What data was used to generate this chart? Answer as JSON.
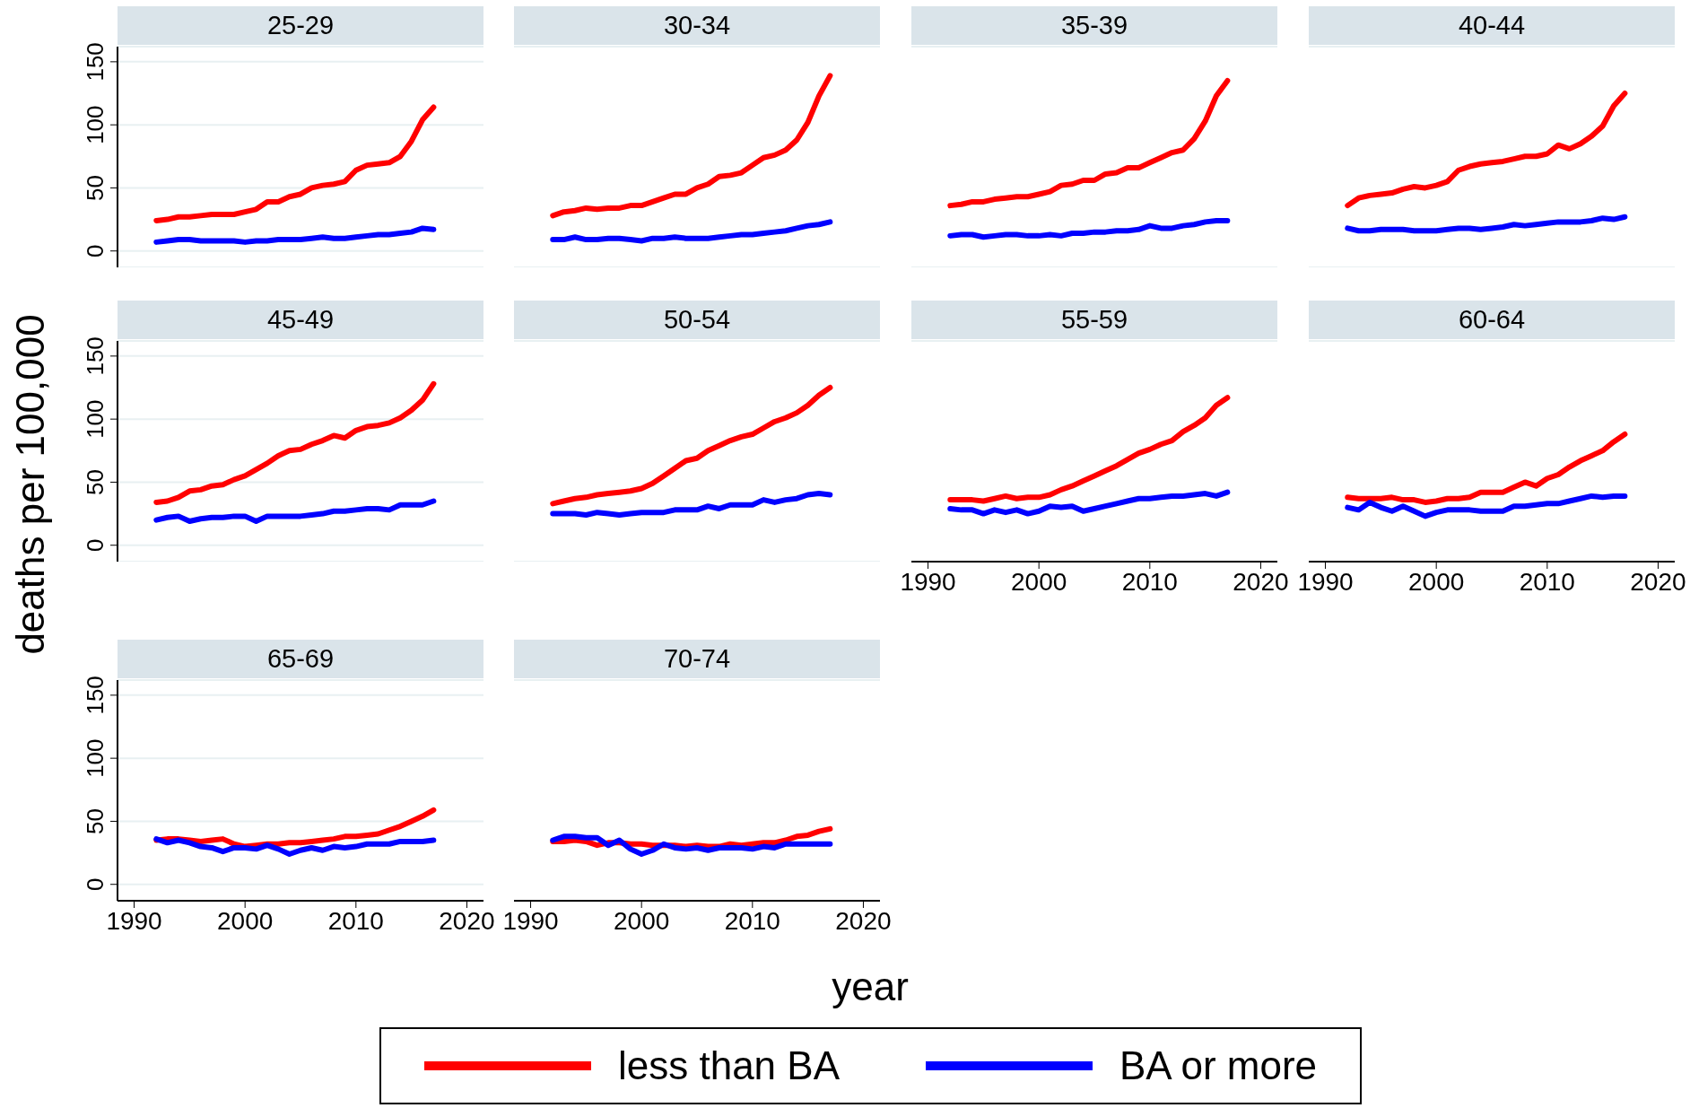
{
  "chart_data": [
    {
      "type": "line",
      "title": "25-29",
      "ylabel": "deaths per 100,000",
      "legend": "bottom",
      "grid": "y",
      "tick_labels": "y",
      "xlim": [
        1988.5,
        2021.5
      ],
      "ylim": [
        -13,
        162
      ],
      "xticks": [
        1990,
        2000,
        2010,
        2020
      ],
      "yticks": [
        0,
        50,
        100,
        150
      ],
      "x": [
        1992,
        1993,
        1994,
        1995,
        1996,
        1997,
        1998,
        1999,
        2000,
        2001,
        2002,
        2003,
        2004,
        2005,
        2006,
        2007,
        2008,
        2009,
        2010,
        2011,
        2012,
        2013,
        2014,
        2015,
        2016,
        2017
      ],
      "series": [
        {
          "name": "less than BA",
          "color": "#ff0000",
          "values": [
            24,
            25,
            27,
            27,
            28,
            29,
            29,
            29,
            31,
            33,
            39,
            39,
            43,
            45,
            50,
            52,
            53,
            55,
            64,
            68,
            69,
            70,
            75,
            87,
            104,
            114
          ]
        },
        {
          "name": "BA or more",
          "color": "#0000ff",
          "values": [
            7,
            8,
            9,
            9,
            8,
            8,
            8,
            8,
            7,
            8,
            8,
            9,
            9,
            9,
            10,
            11,
            10,
            10,
            11,
            12,
            13,
            13,
            14,
            15,
            18,
            17
          ]
        }
      ]
    },
    {
      "type": "line",
      "title": "30-34",
      "grid": "y",
      "tick_labels": false,
      "xlim": [
        1988.5,
        2021.5
      ],
      "ylim": [
        -13,
        162
      ],
      "xticks": [
        1990,
        2000,
        2010,
        2020
      ],
      "yticks": [
        0,
        50,
        100,
        150
      ],
      "x": [
        1992,
        1993,
        1994,
        1995,
        1996,
        1997,
        1998,
        1999,
        2000,
        2001,
        2002,
        2003,
        2004,
        2005,
        2006,
        2007,
        2008,
        2009,
        2010,
        2011,
        2012,
        2013,
        2014,
        2015,
        2016,
        2017
      ],
      "series": [
        {
          "color": "#ff0000",
          "values": [
            28,
            31,
            32,
            34,
            33,
            34,
            34,
            36,
            36,
            39,
            42,
            45,
            45,
            50,
            53,
            59,
            60,
            62,
            68,
            74,
            76,
            80,
            88,
            102,
            123,
            139
          ]
        },
        {
          "color": "#0000ff",
          "values": [
            9,
            9,
            11,
            9,
            9,
            10,
            10,
            9,
            8,
            10,
            10,
            11,
            10,
            10,
            10,
            11,
            12,
            13,
            13,
            14,
            15,
            16,
            18,
            20,
            21,
            23
          ]
        }
      ]
    },
    {
      "type": "line",
      "title": "35-39",
      "grid": "y",
      "tick_labels": false,
      "xlim": [
        1988.5,
        2021.5
      ],
      "ylim": [
        -13,
        162
      ],
      "xticks": [
        1990,
        2000,
        2010,
        2020
      ],
      "yticks": [
        0,
        50,
        100,
        150
      ],
      "x": [
        1992,
        1993,
        1994,
        1995,
        1996,
        1997,
        1998,
        1999,
        2000,
        2001,
        2002,
        2003,
        2004,
        2005,
        2006,
        2007,
        2008,
        2009,
        2010,
        2011,
        2012,
        2013,
        2014,
        2015,
        2016,
        2017
      ],
      "series": [
        {
          "color": "#ff0000",
          "values": [
            36,
            37,
            39,
            39,
            41,
            42,
            43,
            43,
            45,
            47,
            52,
            53,
            56,
            56,
            61,
            62,
            66,
            66,
            70,
            74,
            78,
            80,
            89,
            103,
            123,
            135
          ]
        },
        {
          "color": "#0000ff",
          "values": [
            12,
            13,
            13,
            11,
            12,
            13,
            13,
            12,
            12,
            13,
            12,
            14,
            14,
            15,
            15,
            16,
            16,
            17,
            20,
            18,
            18,
            20,
            21,
            23,
            24,
            24
          ]
        }
      ]
    },
    {
      "type": "line",
      "title": "40-44",
      "grid": "y",
      "tick_labels": false,
      "xlim": [
        1988.5,
        2021.5
      ],
      "ylim": [
        -13,
        162
      ],
      "xticks": [
        1990,
        2000,
        2010,
        2020
      ],
      "yticks": [
        0,
        50,
        100,
        150
      ],
      "x": [
        1992,
        1993,
        1994,
        1995,
        1996,
        1997,
        1998,
        1999,
        2000,
        2001,
        2002,
        2003,
        2004,
        2005,
        2006,
        2007,
        2008,
        2009,
        2010,
        2011,
        2012,
        2013,
        2014,
        2015,
        2016,
        2017
      ],
      "series": [
        {
          "color": "#ff0000",
          "values": [
            36,
            42,
            44,
            45,
            46,
            49,
            51,
            50,
            52,
            55,
            64,
            67,
            69,
            70,
            71,
            73,
            75,
            75,
            77,
            84,
            81,
            85,
            91,
            99,
            115,
            125
          ]
        },
        {
          "color": "#0000ff",
          "values": [
            18,
            16,
            16,
            17,
            17,
            17,
            16,
            16,
            16,
            17,
            18,
            18,
            17,
            18,
            19,
            21,
            20,
            21,
            22,
            23,
            23,
            23,
            24,
            26,
            25,
            27
          ]
        }
      ]
    },
    {
      "type": "line",
      "title": "45-49",
      "grid": "y",
      "tick_labels": "y",
      "xlim": [
        1988.5,
        2021.5
      ],
      "ylim": [
        -13,
        162
      ],
      "xticks": [
        1990,
        2000,
        2010,
        2020
      ],
      "yticks": [
        0,
        50,
        100,
        150
      ],
      "x": [
        1992,
        1993,
        1994,
        1995,
        1996,
        1997,
        1998,
        1999,
        2000,
        2001,
        2002,
        2003,
        2004,
        2005,
        2006,
        2007,
        2008,
        2009,
        2010,
        2011,
        2012,
        2013,
        2014,
        2015,
        2016,
        2017
      ],
      "series": [
        {
          "color": "#ff0000",
          "values": [
            34,
            35,
            38,
            43,
            44,
            47,
            48,
            52,
            55,
            60,
            65,
            71,
            75,
            76,
            80,
            83,
            87,
            85,
            91,
            94,
            95,
            97,
            101,
            107,
            115,
            128
          ]
        },
        {
          "color": "#0000ff",
          "values": [
            20,
            22,
            23,
            19,
            21,
            22,
            22,
            23,
            23,
            19,
            23,
            23,
            23,
            23,
            24,
            25,
            27,
            27,
            28,
            29,
            29,
            28,
            32,
            32,
            32,
            35
          ]
        }
      ]
    },
    {
      "type": "line",
      "title": "50-54",
      "grid": "y",
      "tick_labels": false,
      "xlim": [
        1988.5,
        2021.5
      ],
      "ylim": [
        -13,
        162
      ],
      "xticks": [
        1990,
        2000,
        2010,
        2020
      ],
      "yticks": [
        0,
        50,
        100,
        150
      ],
      "x": [
        1992,
        1993,
        1994,
        1995,
        1996,
        1997,
        1998,
        1999,
        2000,
        2001,
        2002,
        2003,
        2004,
        2005,
        2006,
        2007,
        2008,
        2009,
        2010,
        2011,
        2012,
        2013,
        2014,
        2015,
        2016,
        2017
      ],
      "series": [
        {
          "color": "#ff0000",
          "values": [
            33,
            35,
            37,
            38,
            40,
            41,
            42,
            43,
            45,
            49,
            55,
            61,
            67,
            69,
            75,
            79,
            83,
            86,
            88,
            93,
            98,
            101,
            105,
            111,
            119,
            125
          ]
        },
        {
          "color": "#0000ff",
          "values": [
            25,
            25,
            25,
            24,
            26,
            25,
            24,
            25,
            26,
            26,
            26,
            28,
            28,
            28,
            31,
            29,
            32,
            32,
            32,
            36,
            34,
            36,
            37,
            40,
            41,
            40
          ]
        }
      ]
    },
    {
      "type": "line",
      "title": "55-59",
      "grid": "y",
      "tick_labels": "x",
      "xlim": [
        1988.5,
        2021.5
      ],
      "ylim": [
        -13,
        162
      ],
      "xticks": [
        1990,
        2000,
        2010,
        2020
      ],
      "yticks": [
        0,
        50,
        100,
        150
      ],
      "x": [
        1992,
        1993,
        1994,
        1995,
        1996,
        1997,
        1998,
        1999,
        2000,
        2001,
        2002,
        2003,
        2004,
        2005,
        2006,
        2007,
        2008,
        2009,
        2010,
        2011,
        2012,
        2013,
        2014,
        2015,
        2016,
        2017
      ],
      "series": [
        {
          "color": "#ff0000",
          "values": [
            36,
            36,
            36,
            35,
            37,
            39,
            37,
            38,
            38,
            40,
            44,
            47,
            51,
            55,
            59,
            63,
            68,
            73,
            76,
            80,
            83,
            90,
            95,
            101,
            111,
            117
          ]
        },
        {
          "color": "#0000ff",
          "values": [
            29,
            28,
            28,
            25,
            28,
            26,
            28,
            25,
            27,
            31,
            30,
            31,
            27,
            29,
            31,
            33,
            35,
            37,
            37,
            38,
            39,
            39,
            40,
            41,
            39,
            42
          ]
        }
      ]
    },
    {
      "type": "line",
      "title": "60-64",
      "grid": "y",
      "tick_labels": "x",
      "xlim": [
        1988.5,
        2021.5
      ],
      "ylim": [
        -13,
        162
      ],
      "xticks": [
        1990,
        2000,
        2010,
        2020
      ],
      "yticks": [
        0,
        50,
        100,
        150
      ],
      "x": [
        1992,
        1993,
        1994,
        1995,
        1996,
        1997,
        1998,
        1999,
        2000,
        2001,
        2002,
        2003,
        2004,
        2005,
        2006,
        2007,
        2008,
        2009,
        2010,
        2011,
        2012,
        2013,
        2014,
        2015,
        2016,
        2017
      ],
      "series": [
        {
          "color": "#ff0000",
          "values": [
            38,
            37,
            37,
            37,
            38,
            36,
            36,
            34,
            35,
            37,
            37,
            38,
            42,
            42,
            42,
            46,
            50,
            47,
            53,
            56,
            62,
            67,
            71,
            75,
            82,
            88
          ]
        },
        {
          "color": "#0000ff",
          "values": [
            30,
            28,
            34,
            30,
            27,
            31,
            27,
            23,
            26,
            28,
            28,
            28,
            27,
            27,
            27,
            31,
            31,
            32,
            33,
            33,
            35,
            37,
            39,
            38,
            39,
            39
          ]
        }
      ]
    },
    {
      "type": "line",
      "title": "65-69",
      "grid": "y",
      "xlim": [
        1988.5,
        2021.5
      ],
      "ylim": [
        -13,
        162
      ],
      "xticks": [
        1990,
        2000,
        2010,
        2020
      ],
      "yticks": [
        0,
        50,
        100,
        150
      ],
      "x": [
        1992,
        1993,
        1994,
        1995,
        1996,
        1997,
        1998,
        1999,
        2000,
        2001,
        2002,
        2003,
        2004,
        2005,
        2006,
        2007,
        2008,
        2009,
        2010,
        2011,
        2012,
        2013,
        2014,
        2015,
        2016,
        2017
      ],
      "series": [
        {
          "color": "#ff0000",
          "values": [
            35,
            36,
            36,
            35,
            34,
            35,
            36,
            32,
            30,
            31,
            32,
            32,
            33,
            33,
            34,
            35,
            36,
            38,
            38,
            39,
            40,
            43,
            46,
            50,
            54,
            59
          ]
        },
        {
          "color": "#0000ff",
          "values": [
            36,
            33,
            35,
            33,
            30,
            29,
            26,
            29,
            29,
            28,
            31,
            28,
            24,
            27,
            29,
            27,
            30,
            29,
            30,
            32,
            32,
            32,
            34,
            34,
            34,
            35
          ]
        }
      ]
    },
    {
      "type": "line",
      "title": "70-74",
      "xlabel": "year",
      "grid": "y",
      "tick_labels": "x",
      "xlim": [
        1988.5,
        2021.5
      ],
      "ylim": [
        -13,
        162
      ],
      "xticks": [
        1990,
        2000,
        2010,
        2020
      ],
      "yticks": [
        0,
        50,
        100,
        150
      ],
      "x": [
        1992,
        1993,
        1994,
        1995,
        1996,
        1997,
        1998,
        1999,
        2000,
        2001,
        2002,
        2003,
        2004,
        2005,
        2006,
        2007,
        2008,
        2009,
        2010,
        2011,
        2012,
        2013,
        2014,
        2015,
        2016,
        2017
      ],
      "series": [
        {
          "color": "#ff0000",
          "values": [
            34,
            34,
            35,
            34,
            31,
            33,
            33,
            32,
            32,
            31,
            31,
            31,
            30,
            31,
            30,
            30,
            32,
            31,
            32,
            33,
            33,
            35,
            38,
            39,
            42,
            44
          ]
        },
        {
          "color": "#0000ff",
          "values": [
            35,
            38,
            38,
            37,
            37,
            31,
            35,
            28,
            24,
            27,
            32,
            29,
            28,
            29,
            27,
            29,
            29,
            29,
            28,
            30,
            29,
            32,
            32,
            32,
            32,
            32
          ]
        }
      ]
    }
  ]
}
